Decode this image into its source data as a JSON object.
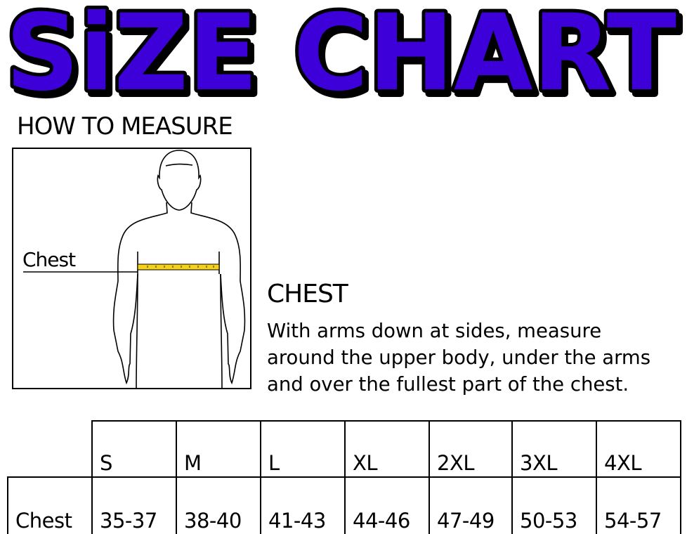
{
  "title": "SiZE CHART",
  "colors": {
    "title_fill": "#3d00d8",
    "title_outline": "#000000",
    "tape": "#f5d21a"
  },
  "how_to_measure": "HOW TO MEASURE",
  "figure": {
    "label": "Chest"
  },
  "section": {
    "title": "CHEST",
    "lines": [
      "With arms down at sides, measure",
      "around the upper body, under the arms",
      "and over the fullest part of the chest."
    ]
  },
  "table": {
    "sizes": [
      "S",
      "M",
      "L",
      "XL",
      "2XL",
      "3XL",
      "4XL"
    ],
    "rows": [
      {
        "label": "Chest",
        "values": [
          "35-37",
          "38-40",
          "41-43",
          "44-46",
          "47-49",
          "50-53",
          "54-57"
        ]
      }
    ]
  }
}
